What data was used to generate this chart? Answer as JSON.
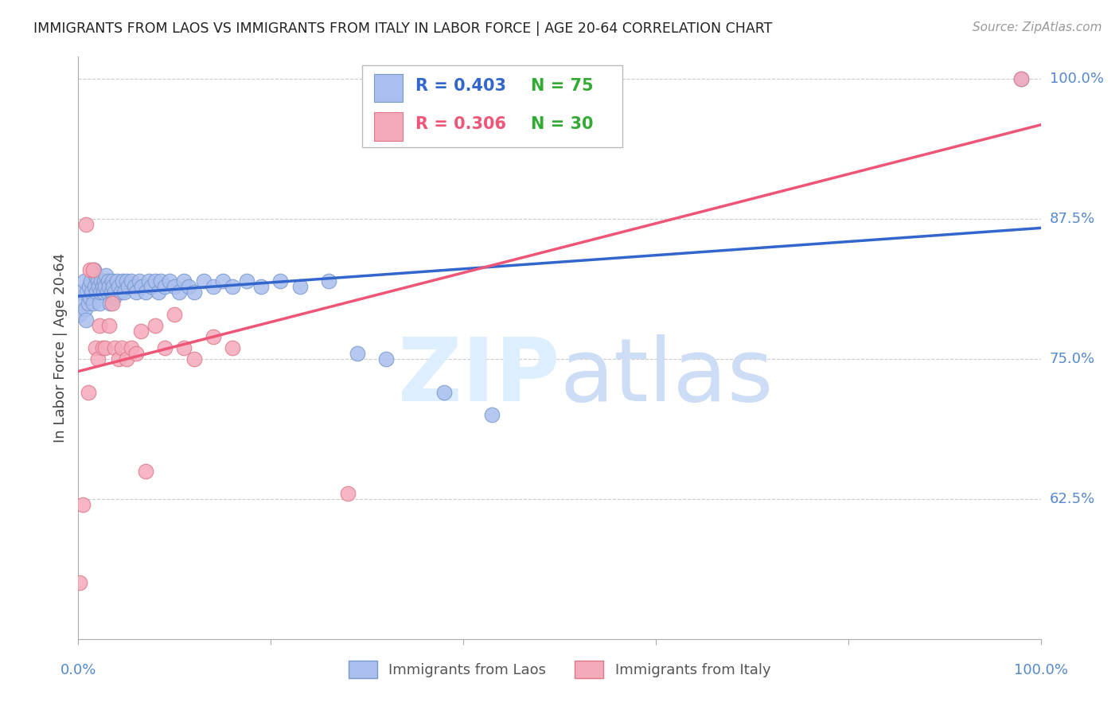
{
  "title": "IMMIGRANTS FROM LAOS VS IMMIGRANTS FROM ITALY IN LABOR FORCE | AGE 20-64 CORRELATION CHART",
  "source": "Source: ZipAtlas.com",
  "ylabel": "In Labor Force | Age 20-64",
  "xlim": [
    0.0,
    1.0
  ],
  "ylim": [
    0.5,
    1.02
  ],
  "yticks": [
    0.625,
    0.75,
    0.875,
    1.0
  ],
  "ytick_labels": [
    "62.5%",
    "75.0%",
    "87.5%",
    "100.0%"
  ],
  "background_color": "#ffffff",
  "grid_color": "#cccccc",
  "axis_color": "#aaaaaa",
  "tick_label_color": "#5588cc",
  "laos_color": "#aabfee",
  "laos_edge_color": "#7799cc",
  "italy_color": "#f5aabb",
  "italy_edge_color": "#dd7788",
  "laos_line_color": "#3366cc",
  "italy_line_color": "#ee5577",
  "legend_r_laos": "R = 0.403",
  "legend_n_laos": "N = 75",
  "legend_r_italy": "R = 0.306",
  "legend_n_italy": "N = 30",
  "legend_r_color": "#3366cc",
  "legend_r_italy_color": "#ee5577",
  "legend_n_color": "#33aa33",
  "legend_label_laos": "Immigrants from Laos",
  "legend_label_italy": "Immigrants from Italy",
  "laos_x": [
    0.001,
    0.003,
    0.005,
    0.006,
    0.007,
    0.008,
    0.009,
    0.01,
    0.011,
    0.012,
    0.013,
    0.014,
    0.015,
    0.016,
    0.017,
    0.018,
    0.019,
    0.02,
    0.021,
    0.022,
    0.023,
    0.024,
    0.025,
    0.026,
    0.027,
    0.028,
    0.029,
    0.03,
    0.031,
    0.032,
    0.033,
    0.034,
    0.035,
    0.036,
    0.037,
    0.038,
    0.04,
    0.042,
    0.044,
    0.046,
    0.048,
    0.05,
    0.052,
    0.055,
    0.058,
    0.06,
    0.063,
    0.066,
    0.07,
    0.073,
    0.076,
    0.08,
    0.083,
    0.086,
    0.09,
    0.095,
    0.1,
    0.105,
    0.11,
    0.115,
    0.12,
    0.13,
    0.14,
    0.15,
    0.16,
    0.175,
    0.19,
    0.21,
    0.23,
    0.26,
    0.29,
    0.32,
    0.38,
    0.43,
    0.98
  ],
  "laos_y": [
    0.79,
    0.81,
    0.8,
    0.82,
    0.795,
    0.785,
    0.81,
    0.8,
    0.815,
    0.805,
    0.82,
    0.81,
    0.8,
    0.83,
    0.815,
    0.825,
    0.81,
    0.82,
    0.815,
    0.8,
    0.81,
    0.82,
    0.815,
    0.81,
    0.82,
    0.815,
    0.825,
    0.81,
    0.82,
    0.815,
    0.8,
    0.81,
    0.82,
    0.815,
    0.805,
    0.81,
    0.82,
    0.815,
    0.81,
    0.82,
    0.81,
    0.82,
    0.815,
    0.82,
    0.815,
    0.81,
    0.82,
    0.815,
    0.81,
    0.82,
    0.815,
    0.82,
    0.81,
    0.82,
    0.815,
    0.82,
    0.815,
    0.81,
    0.82,
    0.815,
    0.81,
    0.82,
    0.815,
    0.82,
    0.815,
    0.82,
    0.815,
    0.82,
    0.815,
    0.82,
    0.755,
    0.75,
    0.72,
    0.7,
    1.0
  ],
  "italy_x": [
    0.001,
    0.005,
    0.008,
    0.01,
    0.012,
    0.015,
    0.018,
    0.02,
    0.022,
    0.025,
    0.028,
    0.032,
    0.035,
    0.038,
    0.042,
    0.045,
    0.05,
    0.055,
    0.06,
    0.065,
    0.07,
    0.08,
    0.09,
    0.1,
    0.11,
    0.12,
    0.14,
    0.16,
    0.28,
    0.98
  ],
  "italy_y": [
    0.55,
    0.62,
    0.87,
    0.72,
    0.83,
    0.83,
    0.76,
    0.75,
    0.78,
    0.76,
    0.76,
    0.78,
    0.8,
    0.76,
    0.75,
    0.76,
    0.75,
    0.76,
    0.755,
    0.775,
    0.65,
    0.78,
    0.76,
    0.79,
    0.76,
    0.75,
    0.77,
    0.76,
    0.63,
    1.0
  ]
}
